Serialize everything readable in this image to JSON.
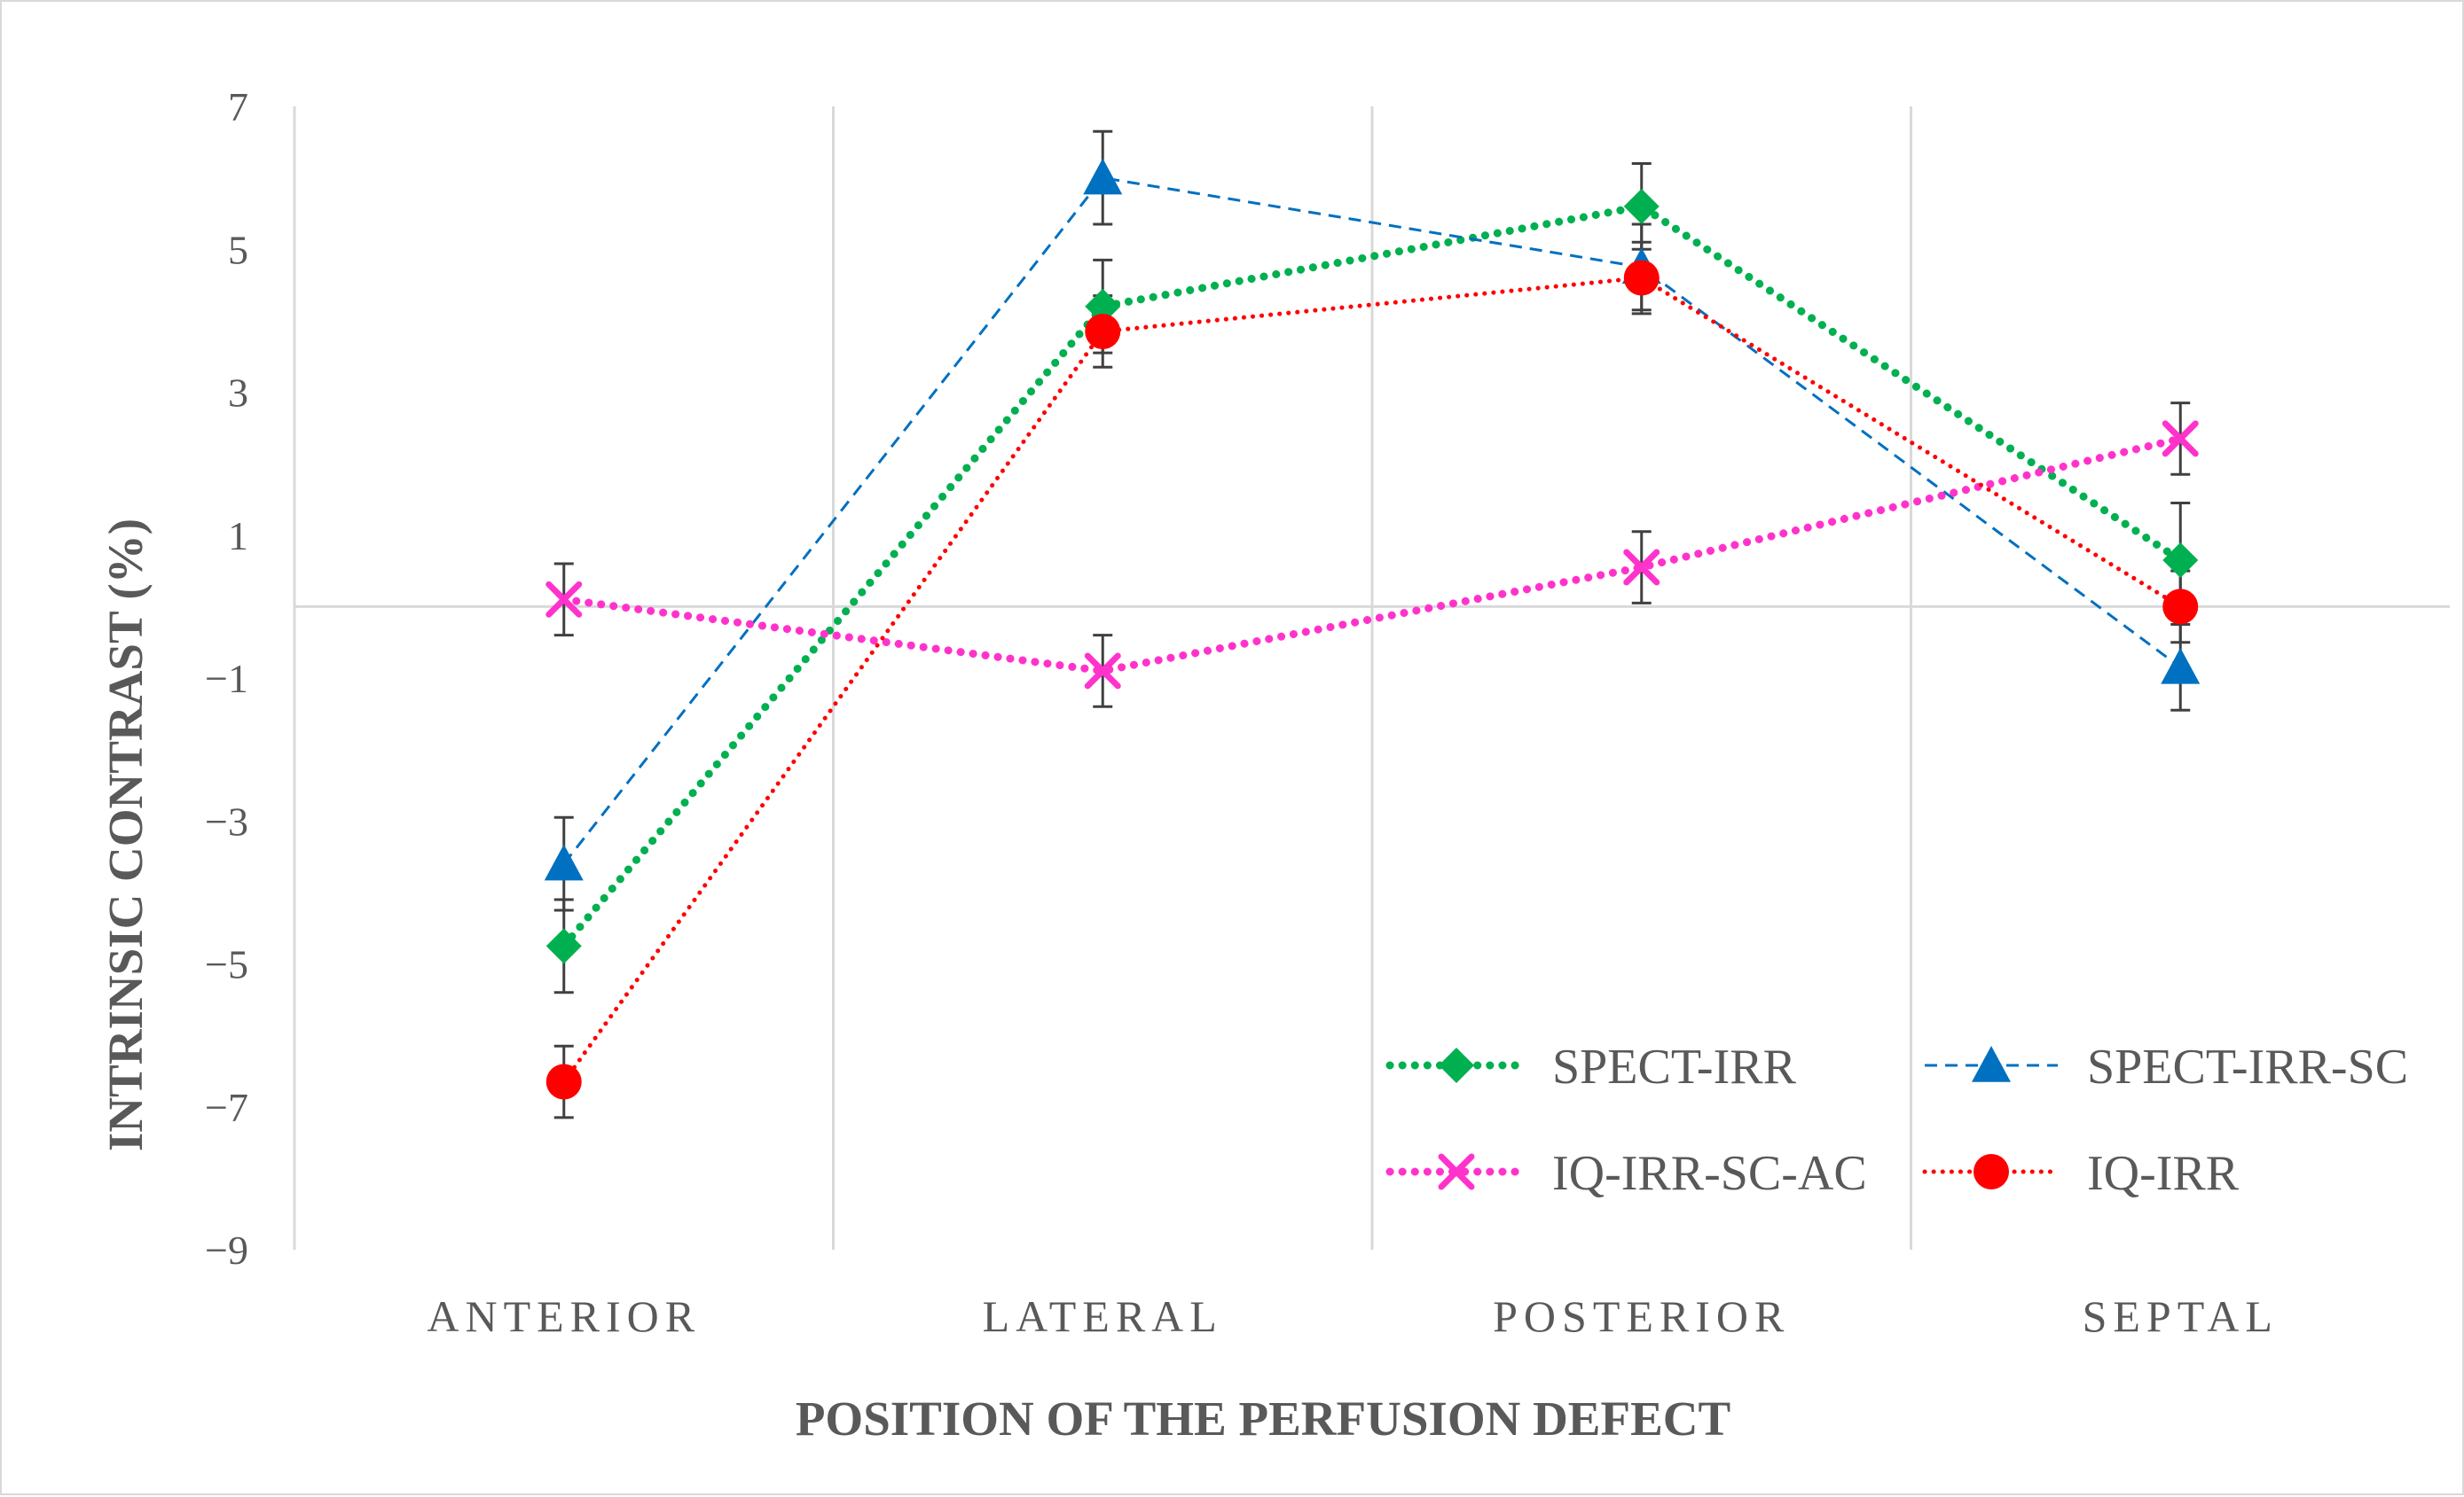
{
  "chart_data": {
    "type": "line",
    "title": "",
    "xlabel": "POSITION OF THE PERFUSION DEFECT",
    "ylabel": "INTRINSIC CONTRAST (%)",
    "categories": [
      "ANTERIOR",
      "LATERAL",
      "POSTERIOR",
      "SEPTAL"
    ],
    "ylim": [
      -9,
      7
    ],
    "yticks": [
      7,
      5,
      3,
      1,
      -1,
      -3,
      -5,
      -7,
      -9
    ],
    "ytick_labels": [
      "7",
      "5",
      "3",
      "1",
      "−1",
      "−3",
      "−5",
      "−7",
      "−9"
    ],
    "grid": "vertical",
    "legend_position": "bottom-right",
    "series": [
      {
        "name": "SPECT-IRR",
        "values": [
          -4.75,
          4.2,
          5.6,
          0.65
        ],
        "errors": [
          0.65,
          0.65,
          0.6,
          0.8
        ],
        "color": "#00b050",
        "dash": "dotted-thick",
        "marker": "diamond"
      },
      {
        "name": "SPECT-IRR-SC",
        "values": [
          -3.6,
          6.0,
          4.75,
          -0.85
        ],
        "errors": [
          0.65,
          0.65,
          0.6,
          0.6
        ],
        "color": "#0070c0",
        "dash": "dashed",
        "marker": "triangle"
      },
      {
        "name": "IQ-IRR-SC-AC",
        "values": [
          0.1,
          -0.9,
          0.55,
          2.35
        ],
        "errors": [
          0.5,
          0.5,
          0.5,
          0.5
        ],
        "color": "#ff33cc",
        "dash": "dotted-thick",
        "marker": "x"
      },
      {
        "name": "IQ-IRR",
        "values": [
          -6.65,
          3.85,
          4.6,
          0.0
        ],
        "errors": [
          0.5,
          0.5,
          0.5,
          0.5
        ],
        "color": "#ff0000",
        "dash": "dotted",
        "marker": "circle"
      }
    ]
  }
}
